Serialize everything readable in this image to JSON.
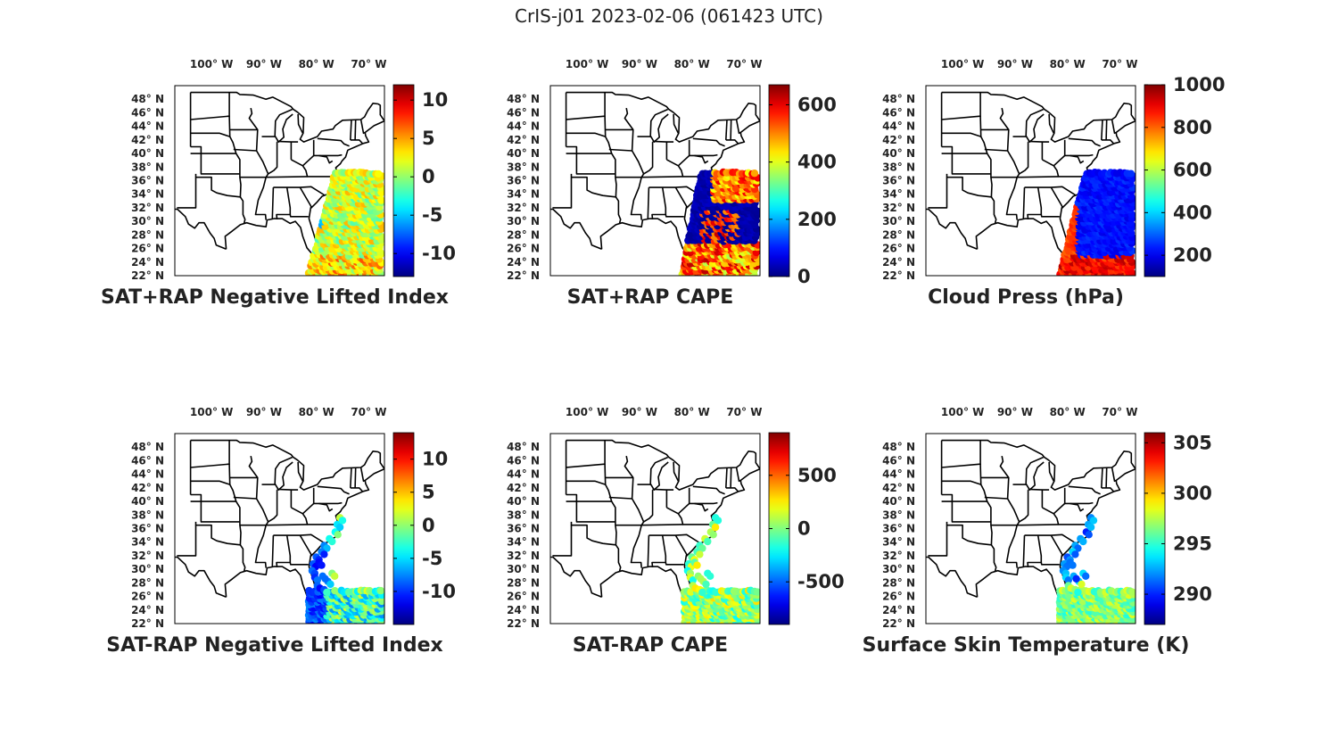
{
  "title": "CrIS-j01 2023-02-06 (061423 UTC)",
  "lon_labels": [
    "100° W",
    "90° W",
    "80° W",
    "70° W"
  ],
  "lat_labels": [
    "48° N",
    "46° N",
    "44° N",
    "42° N",
    "40° N",
    "38° N",
    "36° N",
    "34° N",
    "32° N",
    "30° N",
    "28° N",
    "26° N",
    "24° N",
    "22° N"
  ],
  "map_extent": {
    "lon": [
      -107,
      -67
    ],
    "lat": [
      22,
      50
    ]
  },
  "colormap": "jet",
  "panels": [
    {
      "title": "SAT+RAP Negative Lifted Index",
      "clim": [
        -13,
        12
      ],
      "ticks": [
        -10,
        -5,
        0,
        5,
        10
      ],
      "tick_labels": [
        "-10",
        "-5",
        "0",
        "5",
        "10"
      ],
      "pattern": "nli_plus"
    },
    {
      "title": "SAT+RAP CAPE",
      "clim": [
        0,
        670
      ],
      "ticks": [
        0,
        200,
        400,
        600
      ],
      "tick_labels": [
        "0",
        "200",
        "400",
        "600"
      ],
      "pattern": "cape_plus"
    },
    {
      "title": "Cloud Press (hPa)",
      "clim": [
        100,
        1000
      ],
      "ticks": [
        200,
        400,
        600,
        800,
        1000
      ],
      "tick_labels": [
        "200",
        "400",
        "600",
        "800",
        "1000"
      ],
      "pattern": "cloud"
    },
    {
      "title": "SAT-RAP Negative Lifted Index",
      "clim": [
        -15,
        14
      ],
      "ticks": [
        -10,
        -5,
        0,
        5,
        10
      ],
      "tick_labels": [
        "-10",
        "-5",
        "0",
        "5",
        "10"
      ],
      "pattern": "nli_minus"
    },
    {
      "title": "SAT-RAP CAPE",
      "clim": [
        -900,
        900
      ],
      "ticks": [
        -500,
        0,
        500
      ],
      "tick_labels": [
        "-500",
        "0",
        "500"
      ],
      "pattern": "cape_minus"
    },
    {
      "title": "Surface Skin Temperature (K)",
      "clim": [
        287,
        306
      ],
      "ticks": [
        290,
        295,
        300,
        305
      ],
      "tick_labels": [
        "290",
        "295",
        "300",
        "305"
      ],
      "pattern": "skin"
    }
  ]
}
